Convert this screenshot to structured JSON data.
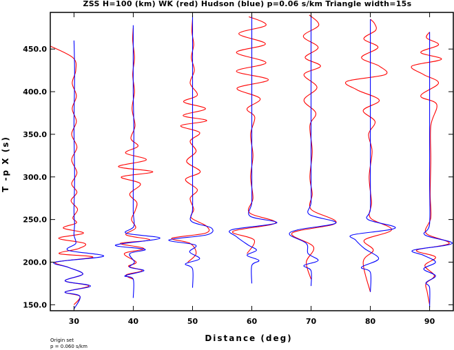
{
  "chart_data": {
    "type": "line",
    "title": "ZSS H=100 (km) WK (red) Hudson (blue) p=0.06 s/km Triangle width=15s",
    "xlabel": "Distance (deg)",
    "ylabel": "T -p X (s)",
    "xlim": [
      26,
      94
    ],
    "ylim": [
      143,
      493
    ],
    "xticks": [
      30,
      40,
      50,
      60,
      70,
      80,
      90
    ],
    "yticks": [
      150.0,
      200.0,
      250.0,
      300.0,
      350.0,
      400.0,
      450.0
    ],
    "ytick_labels": [
      "150.0",
      "200.0",
      "250.0",
      "300.0",
      "350.0",
      "400.0",
      "450.0"
    ],
    "grid": false,
    "colors": {
      "wk": "#ff0000",
      "hudson": "#0000ff",
      "frame": "#000000"
    },
    "series": [
      {
        "name": "WK",
        "traces": [
          {
            "distance": 30,
            "t": [
              150,
              160,
              165,
              172,
              178,
              186,
              194,
              200,
              206,
              210,
              216,
              222,
              228,
              234,
              240,
              246,
              252,
              262,
              272,
              282,
              292,
              305,
              320,
              335,
              350,
              365,
              380,
              395,
              410,
              425,
              440,
              455
            ],
            "v": [
              0,
              1,
              -1.5,
              2.5,
              -1.5,
              1.5,
              -1,
              -3,
              3.2,
              -2.5,
              0.8,
              1.8,
              -2.6,
              1.6,
              -1.8,
              0.4,
              -0.2,
              0.6,
              -0.5,
              0.5,
              -0.4,
              0.5,
              -0.4,
              0.5,
              -0.4,
              0.4,
              -0.3,
              0.4,
              -0.3,
              0.3,
              -0.2,
              -4.5
            ]
          },
          {
            "distance": 40,
            "t": [
              180,
              185,
              190,
              195,
              200,
              210,
              216,
              222,
              226,
              232,
              240,
              250,
              260,
              270,
              280,
              292,
              300,
              306,
              312,
              320,
              328,
              336,
              345,
              360,
              380,
              400,
              420,
              440,
              460,
              475
            ],
            "v": [
              0,
              -1.2,
              1.5,
              -0.8,
              0.5,
              -1.5,
              1.8,
              -2.2,
              2.8,
              -1.2,
              0.4,
              -0.3,
              0.3,
              0.6,
              -0.6,
              1.2,
              -2,
              3.3,
              -2.5,
              2.2,
              -1.3,
              0.8,
              -0.4,
              0.3,
              -0.2,
              0.2,
              -0.1,
              0.2,
              -0.1,
              0
            ]
          },
          {
            "distance": 50,
            "t": [
              200,
              210,
              222,
              228,
              234,
              242,
              252,
              262,
              275,
              285,
              297,
              306,
              318,
              330,
              342,
              352,
              360,
              366,
              372,
              380,
              388,
              396,
              410,
              425,
              440,
              455,
              470,
              485
            ],
            "v": [
              -0.8,
              0.6,
              -0.4,
              -3.5,
              2.2,
              2.4,
              -0.2,
              0.2,
              -0.4,
              0.8,
              -1.2,
              1.3,
              -1,
              0.6,
              -0.4,
              1.2,
              -2,
              2.4,
              -1.6,
              2.2,
              -1.5,
              0.8,
              -0.4,
              0.3,
              -0.2,
              0.2,
              -0.1,
              0
            ]
          },
          {
            "distance": 60,
            "t": [
              210,
              226,
              236,
              246,
              258,
              275,
              300,
              325,
              350,
              370,
              380,
              392,
              404,
              414,
              424,
              434,
              446,
              456,
              468,
              478,
              488
            ],
            "v": [
              -0.8,
              0.4,
              -3.2,
              4,
              -0.4,
              0.2,
              -0.2,
              0.2,
              -0.2,
              0.5,
              -0.8,
              1.4,
              -2.5,
              2.8,
              -2.6,
              2.4,
              -2.6,
              2.3,
              -2.2,
              2.4,
              -0.5
            ]
          },
          {
            "distance": 70,
            "t": [
              180,
              200,
              218,
              234,
              246,
              262,
              280,
              300,
              330,
              360,
              375,
              390,
              405,
              420,
              430,
              440,
              452,
              465,
              478,
              490
            ],
            "v": [
              0,
              -0.8,
              0.4,
              -3.2,
              4.2,
              0,
              0.2,
              -0.2,
              0.2,
              -0.2,
              0.8,
              -1.2,
              1,
              -1.2,
              1.6,
              -1,
              1.2,
              -1.3,
              1.3,
              -0.3
            ]
          },
          {
            "distance": 80,
            "t": [
              165,
              200,
              214,
              226,
              238,
              252,
              270,
              300,
              330,
              350,
              365,
              378,
              390,
              402,
              412,
              420,
              430,
              440,
              452,
              462,
              472,
              480,
              485
            ],
            "v": [
              0,
              -1.2,
              0.5,
              -1,
              3.6,
              0,
              0.2,
              -0.2,
              0.3,
              -0.3,
              0.8,
              -1.2,
              1.5,
              -2.2,
              -4,
              2.5,
              1.5,
              -1.5,
              1.3,
              -1.1,
              0.9,
              0.7,
              0
            ]
          },
          {
            "distance": 90,
            "t": [
              150,
              165,
              175,
              184,
              196,
              206,
              214,
              222,
              234,
              252,
              280,
              320,
              360,
              385,
              395,
              410,
              420,
              430,
              438,
              446,
              455,
              463,
              470
            ],
            "v": [
              0,
              -0.4,
              -0.6,
              0.8,
              -0.8,
              1,
              -2.2,
              3.3,
              -0.6,
              0.2,
              0.1,
              0.2,
              0.2,
              1.2,
              -1.5,
              1.5,
              -1,
              -3,
              2,
              -1.5,
              1.5,
              -0.5,
              0
            ]
          }
        ]
      },
      {
        "name": "Hudson",
        "traces": [
          {
            "distance": 30,
            "t": [
              145,
              160,
              165,
              172,
              178,
              186,
              194,
              200,
              207,
              214,
              222,
              232,
              245,
              260,
              300,
              360,
              420,
              460
            ],
            "v": [
              0,
              1,
              -1.5,
              2.8,
              -1.5,
              1.5,
              -1,
              -3.2,
              5,
              -1,
              0.3,
              0,
              0.1,
              0,
              0.1,
              0,
              0.1,
              0
            ]
          },
          {
            "distance": 40,
            "t": [
              158,
              180,
              184,
              190,
              194,
              200,
              210,
              215,
              220,
              228,
              234,
              242,
              260,
              300,
              350,
              400,
              450,
              478
            ],
            "v": [
              0,
              0,
              -1.4,
              1.8,
              -0.6,
              0.2,
              -0.6,
              2,
              -3,
              4.5,
              -1.2,
              0.1,
              0,
              0,
              0.1,
              0,
              0,
              0
            ]
          },
          {
            "distance": 50,
            "t": [
              170,
              192,
              198,
              204,
              212,
              220,
              226,
              232,
              240,
              248,
              262,
              300,
              350,
              400,
              450,
              490
            ],
            "v": [
              0,
              0,
              -1.2,
              1.2,
              -0.5,
              0.5,
              -4,
              2.4,
              3.2,
              -0.2,
              0,
              0,
              0,
              0,
              0,
              0
            ]
          },
          {
            "distance": 60,
            "t": [
              175,
              196,
              202,
              208,
              214,
              220,
              230,
              238,
              246,
              254,
              270,
              300,
              400,
              490
            ],
            "v": [
              0,
              0,
              1.2,
              -0.8,
              0.8,
              -0.6,
              -2.6,
              -3.4,
              4.2,
              -0.3,
              0,
              0,
              0,
              0
            ]
          },
          {
            "distance": 70,
            "t": [
              172,
              190,
              196,
              202,
              210,
              222,
              232,
              238,
              246,
              256,
              270,
              300,
              400,
              490
            ],
            "v": [
              0,
              0,
              -1.2,
              1.2,
              -0.5,
              -0.8,
              -3.6,
              -2.2,
              4.2,
              -0.3,
              0,
              0,
              0,
              0
            ]
          },
          {
            "distance": 80,
            "t": [
              165,
              188,
              194,
              204,
              216,
              226,
              232,
              240,
              250,
              262,
              300,
              400,
              485
            ],
            "v": [
              0,
              0,
              -1.5,
              1.4,
              -1,
              -2.5,
              -3,
              4.2,
              -0.4,
              0,
              0,
              0,
              0
            ]
          },
          {
            "distance": 90,
            "t": [
              147,
              170,
              176,
              184,
              192,
              200,
              208,
              214,
              222,
              232,
              245,
              300,
              400,
              470
            ],
            "v": [
              0,
              0,
              -0.6,
              1,
              -1,
              1,
              -1,
              -2.8,
              3.8,
              -0.8,
              0,
              0,
              0,
              0
            ]
          }
        ]
      }
    ]
  },
  "footnote": {
    "line1": "Origin set",
    "line2": "p = 0.060 s/km"
  }
}
